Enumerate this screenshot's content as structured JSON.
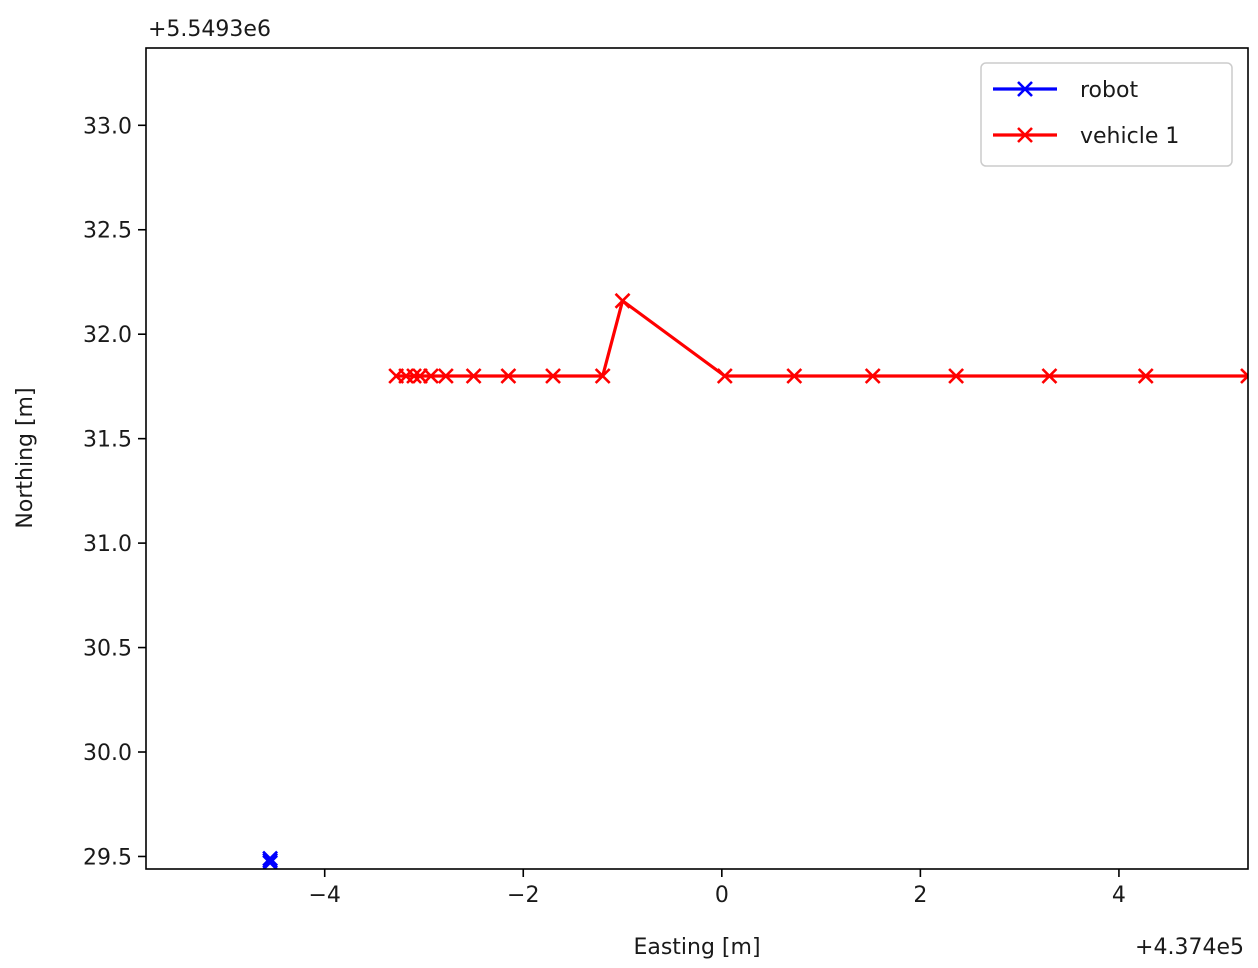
{
  "chart_data": {
    "type": "line",
    "title": "",
    "xlabel": "Easting [m]",
    "ylabel": "Northing [m]",
    "x_offset_label": "+4.374e5",
    "y_offset_label": "+5.5493e6",
    "xlim": [
      -5.8,
      5.3
    ],
    "ylim": [
      29.44,
      33.37
    ],
    "x_ticks": [
      -4,
      -2,
      0,
      2,
      4
    ],
    "x_tick_labels": [
      "−4",
      "−2",
      "0",
      "2",
      "4"
    ],
    "y_ticks": [
      29.5,
      30.0,
      30.5,
      31.0,
      31.5,
      32.0,
      32.5,
      33.0
    ],
    "y_tick_labels": [
      "29.5",
      "30.0",
      "30.5",
      "31.0",
      "31.5",
      "32.0",
      "32.5",
      "33.0"
    ],
    "grid": false,
    "legend_position": "top-right",
    "series": [
      {
        "name": "robot",
        "color": "#0000ff",
        "marker": "x",
        "x": [
          -4.55,
          -4.55,
          -4.55
        ],
        "y": [
          29.47,
          29.48,
          29.49
        ]
      },
      {
        "name": "vehicle 1",
        "color": "#ff0000",
        "marker": "x",
        "x": [
          -3.28,
          -3.18,
          -3.1,
          -3.04,
          -2.93,
          -2.78,
          -2.5,
          -2.15,
          -1.7,
          -1.2,
          -1.0,
          0.03,
          0.73,
          1.52,
          2.36,
          3.3,
          4.27,
          5.3
        ],
        "y": [
          31.8,
          31.8,
          31.8,
          31.8,
          31.8,
          31.8,
          31.8,
          31.8,
          31.8,
          31.8,
          32.16,
          31.8,
          31.8,
          31.8,
          31.8,
          31.8,
          31.8,
          31.8
        ]
      }
    ]
  }
}
